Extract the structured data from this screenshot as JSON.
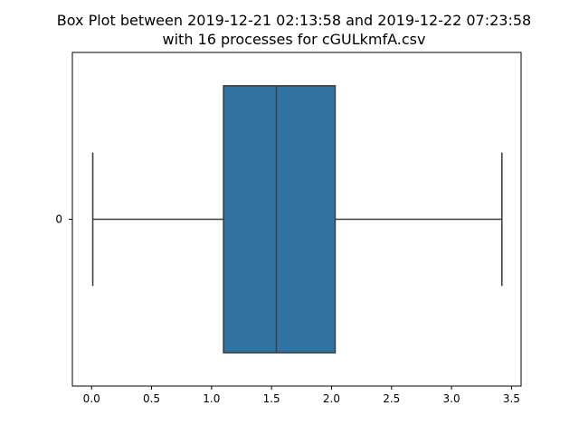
{
  "chart_data": {
    "type": "box",
    "orientation": "horizontal",
    "title_line1": "Box Plot between  2019-12-21 02:13:58 and 2019-12-22 07:23:58",
    "title_line2": "with 16 processes for cGULkmfA.csv",
    "xlabel": "",
    "ylabel": "",
    "xlim": [
      -0.16,
      3.58
    ],
    "x_ticks": [
      0.0,
      0.5,
      1.0,
      1.5,
      2.0,
      2.5,
      3.0,
      3.5
    ],
    "x_tick_labels": [
      "0.0",
      "0.5",
      "1.0",
      "1.5",
      "2.0",
      "2.5",
      "3.0",
      "3.5"
    ],
    "categories": [
      "0"
    ],
    "boxes": [
      {
        "category": "0",
        "whisker_low": 0.01,
        "q1": 1.1,
        "median": 1.54,
        "q3": 2.03,
        "whisker_high": 3.42
      }
    ],
    "grid": false,
    "colors": {
      "box_fill": "#3274a1",
      "line": "#3f3f3f"
    }
  }
}
